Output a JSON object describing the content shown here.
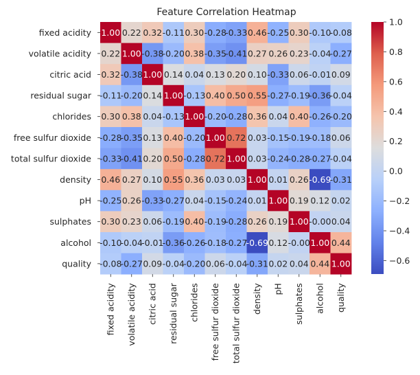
{
  "chart_data": {
    "type": "heatmap",
    "title": "Feature Correlation Heatmap",
    "xlabel": "",
    "ylabel": "",
    "labels": [
      "fixed acidity",
      "volatile acidity",
      "citric acid",
      "residual sugar",
      "chlorides",
      "free sulfur dioxide",
      "total sulfur dioxide",
      "density",
      "pH",
      "sulphates",
      "alcohol",
      "quality"
    ],
    "cell_labels": [
      [
        "1.00",
        "0.22",
        "0.32",
        "-0.11",
        "0.30",
        "-0.28",
        "-0.33",
        "0.46",
        "-0.25",
        "0.30",
        "-0.10",
        "-0.08"
      ],
      [
        "0.22",
        "1.00",
        "-0.38",
        "-0.20",
        "0.38",
        "-0.35",
        "-0.41",
        "0.27",
        "0.26",
        "0.23",
        "-0.04",
        "-0.27"
      ],
      [
        "0.32",
        "-0.38",
        "1.00",
        "0.14",
        "0.04",
        "0.13",
        "0.20",
        "0.10",
        "-0.33",
        "0.06",
        "-0.01",
        "0.09"
      ],
      [
        "-0.11",
        "-0.20",
        "0.14",
        "1.00",
        "-0.13",
        "0.40",
        "0.50",
        "0.55",
        "-0.27",
        "-0.19",
        "-0.36",
        "-0.04"
      ],
      [
        "0.30",
        "0.38",
        "0.04",
        "-0.13",
        "1.00",
        "-0.20",
        "-0.28",
        "0.36",
        "0.04",
        "0.40",
        "-0.26",
        "-0.20"
      ],
      [
        "-0.28",
        "-0.35",
        "0.13",
        "0.40",
        "-0.20",
        "1.00",
        "0.72",
        "0.03",
        "-0.15",
        "-0.19",
        "-0.18",
        "0.06"
      ],
      [
        "-0.33",
        "-0.41",
        "0.20",
        "0.50",
        "-0.28",
        "0.72",
        "1.00",
        "0.03",
        "-0.24",
        "-0.28",
        "-0.27",
        "-0.04"
      ],
      [
        "0.46",
        "0.27",
        "0.10",
        "0.55",
        "0.36",
        "0.03",
        "0.03",
        "1.00",
        "0.01",
        "0.26",
        "-0.69",
        "-0.31"
      ],
      [
        "-0.25",
        "0.26",
        "-0.33",
        "-0.27",
        "0.04",
        "-0.15",
        "-0.24",
        "0.01",
        "1.00",
        "0.19",
        "0.12",
        "0.02"
      ],
      [
        "0.30",
        "0.23",
        "0.06",
        "-0.19",
        "0.40",
        "-0.19",
        "-0.28",
        "0.26",
        "0.19",
        "1.00",
        "-0.00",
        "0.04"
      ],
      [
        "-0.10",
        "-0.04",
        "-0.01",
        "-0.36",
        "-0.26",
        "-0.18",
        "-0.27",
        "-0.69",
        "0.12",
        "-0.00",
        "1.00",
        "0.44"
      ],
      [
        "-0.08",
        "-0.27",
        "0.09",
        "-0.04",
        "-0.20",
        "0.06",
        "-0.04",
        "-0.31",
        "0.02",
        "0.04",
        "0.44",
        "1.00"
      ]
    ],
    "colorbar": {
      "cmap": "coolwarm",
      "vmin": -0.69,
      "vmax": 1.0,
      "ticks": [
        1.0,
        0.8,
        0.6,
        0.4,
        0.2,
        0.0,
        -0.2,
        -0.4,
        -0.6
      ],
      "tick_labels": [
        "1.0",
        "0.8",
        "0.6",
        "0.4",
        "0.2",
        "0.0",
        "−0.2",
        "−0.4",
        "−0.6"
      ]
    },
    "grid": false,
    "legend": "right"
  }
}
